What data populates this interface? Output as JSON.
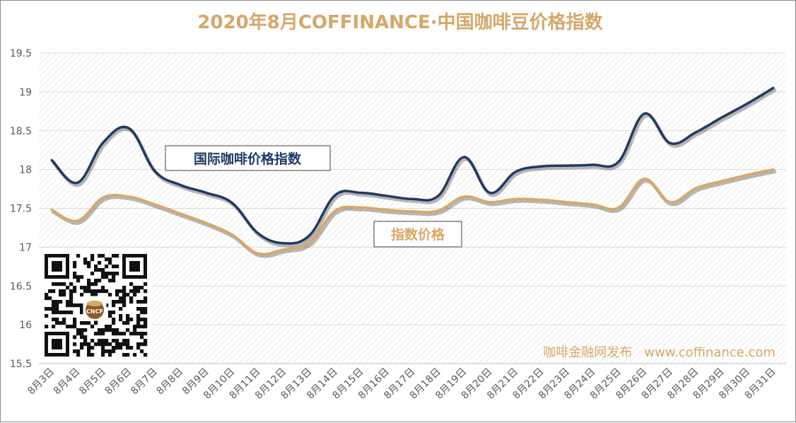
{
  "colors": {
    "title": "#d4a76a",
    "series_blue": "#1f3a63",
    "series_gold": "#d9a865",
    "grid": "#d9d9d9",
    "axis_text": "#595959",
    "watermark": "#d4a76a"
  },
  "chart_data": {
    "type": "line",
    "title": "2020年8月COFFINANCE·中国咖啡豆价格指数",
    "categories": [
      "8月3日",
      "8月4日",
      "8月5日",
      "8月6日",
      "8月7日",
      "8月8日",
      "8月9日",
      "8月10日",
      "8月11日",
      "8月12日",
      "8月13日",
      "8月14日",
      "8月15日",
      "8月16日",
      "8月17日",
      "8月18日",
      "8月19日",
      "8月20日",
      "8月21日",
      "8月22日",
      "8月23日",
      "8月24日",
      "8月25日",
      "8月26日",
      "8月27日",
      "8月28日",
      "8月29日",
      "8月30日",
      "8月31日"
    ],
    "ylim": [
      15.5,
      19.5
    ],
    "yticks": [
      "15.5",
      "16",
      "16.5",
      "17",
      "17.5",
      "18",
      "18.5",
      "19",
      "19.5"
    ],
    "grid": true,
    "series": [
      {
        "name": "国际咖啡价格指数",
        "color": "#1f3a63",
        "values": [
          18.12,
          17.83,
          18.35,
          18.53,
          17.98,
          17.8,
          17.7,
          17.57,
          17.18,
          17.05,
          17.15,
          17.67,
          17.7,
          17.66,
          17.62,
          17.66,
          18.16,
          17.7,
          17.97,
          18.04,
          18.05,
          18.06,
          18.1,
          18.72,
          18.34,
          18.48,
          18.67,
          18.85,
          19.05
        ]
      },
      {
        "name": "指数价格",
        "color": "#d9a865",
        "values": [
          17.48,
          17.34,
          17.64,
          17.65,
          17.55,
          17.43,
          17.31,
          17.16,
          16.92,
          16.97,
          17.06,
          17.47,
          17.51,
          17.48,
          17.46,
          17.47,
          17.65,
          17.58,
          17.62,
          17.61,
          17.58,
          17.55,
          17.51,
          17.88,
          17.58,
          17.76,
          17.85,
          17.93,
          18.0
        ]
      }
    ],
    "annotations": [
      {
        "text": "国际咖啡价格指数",
        "color": "#1f3a63"
      },
      {
        "text": "指数价格",
        "color": "#d9a865"
      }
    ]
  },
  "watermark": {
    "text": "咖啡金融网发布   www.coffinance.com",
    "qr_logo_text": "CNCF"
  }
}
